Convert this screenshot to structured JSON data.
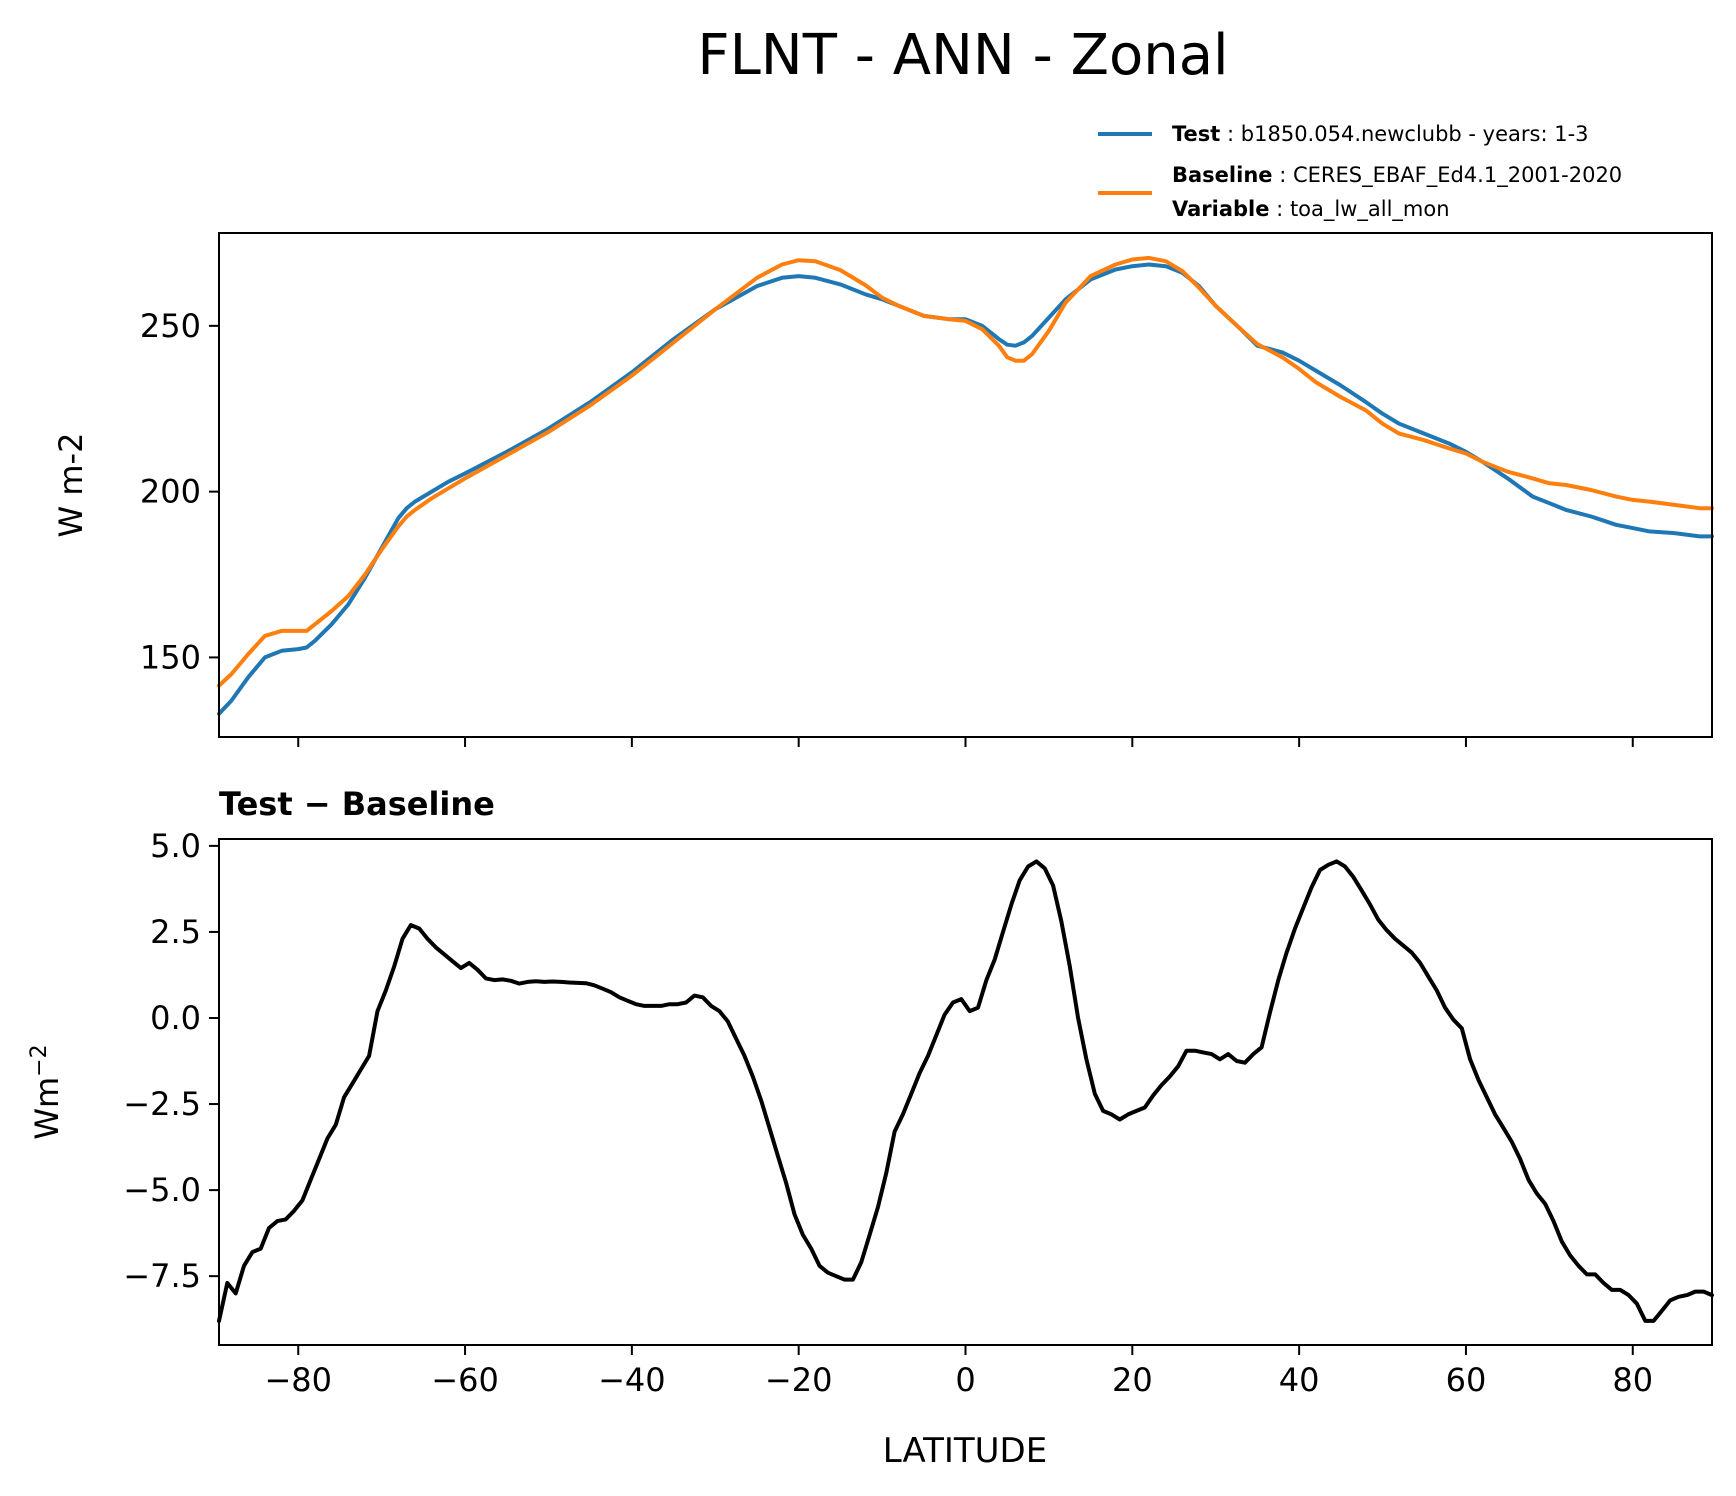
{
  "figure": {
    "title": "FLNT - ANN - Zonal",
    "legend": {
      "test_key": "Test",
      "test_value": "b1850.054.newclubb - years: 1-3",
      "baseline_key": "Baseline",
      "baseline_value": "CERES_EBAF_Ed4.1_2001-2020",
      "variable_key": "Variable",
      "variable_value": "toa_lw_all_mon"
    },
    "colors": {
      "test": "#1f77b4",
      "baseline": "#ff7f0e",
      "diff": "#000000"
    }
  },
  "chart_data": [
    {
      "type": "line",
      "title": "",
      "xlabel": "",
      "ylabel": "W m-2",
      "xlim": [
        -89.5,
        89.5
      ],
      "ylim": [
        126,
        278
      ],
      "xticks": [
        -80,
        -60,
        -40,
        -20,
        0,
        20,
        40,
        60,
        80
      ],
      "yticks": [
        150,
        200,
        250
      ],
      "ytick_labels": [
        "150",
        "200",
        "250"
      ],
      "legend_position": "top-right (above axes)",
      "series": [
        {
          "name": "Test",
          "x": [
            -89.5,
            -88,
            -86,
            -84,
            -82,
            -80,
            -79,
            -78,
            -76,
            -74,
            -72,
            -70,
            -68,
            -67,
            -66,
            -64,
            -62,
            -60,
            -55,
            -50,
            -45,
            -40,
            -35,
            -30,
            -25,
            -22,
            -20,
            -18,
            -15,
            -12,
            -10,
            -8,
            -5,
            -2,
            0,
            2,
            4,
            5,
            6,
            7,
            8,
            10,
            12,
            15,
            18,
            20,
            22,
            24,
            26,
            28,
            30,
            33,
            35,
            38,
            40,
            42,
            45,
            48,
            50,
            52,
            55,
            58,
            60,
            62,
            65,
            68,
            70,
            72,
            75,
            78,
            80,
            82,
            85,
            88,
            89.5
          ],
          "y": [
            133,
            137,
            144,
            150,
            152,
            152.5,
            153,
            155,
            160,
            166,
            174,
            183,
            192,
            195,
            197,
            200,
            203,
            205.5,
            212,
            219,
            227,
            236,
            246,
            255,
            262,
            264.5,
            265,
            264.5,
            262.5,
            259.5,
            258,
            256,
            253,
            252,
            252,
            250,
            246,
            244.3,
            244,
            245,
            247,
            252.5,
            258,
            264,
            267,
            268,
            268.5,
            268,
            266,
            262,
            256,
            249,
            244,
            242,
            239.5,
            236.5,
            232,
            227,
            223.5,
            220.5,
            217.5,
            214.5,
            212,
            209,
            204,
            198.5,
            196.5,
            194.5,
            192.5,
            190,
            189,
            188,
            187.5,
            186.5,
            186.5
          ]
        },
        {
          "name": "Baseline",
          "x": [
            -89.5,
            -88,
            -86,
            -84,
            -82,
            -80,
            -79,
            -78,
            -76,
            -74,
            -72,
            -70,
            -68,
            -67,
            -66,
            -64,
            -62,
            -60,
            -55,
            -50,
            -45,
            -40,
            -35,
            -30,
            -25,
            -22,
            -20,
            -18,
            -15,
            -12,
            -10,
            -8,
            -5,
            -2,
            0,
            2,
            4,
            5,
            6,
            7,
            8,
            10,
            12,
            15,
            18,
            20,
            22,
            24,
            26,
            28,
            30,
            33,
            35,
            38,
            40,
            42,
            45,
            48,
            50,
            52,
            55,
            58,
            60,
            62,
            65,
            68,
            70,
            72,
            75,
            78,
            80,
            82,
            85,
            88,
            89.5
          ],
          "y": [
            141.5,
            145,
            151,
            156.5,
            158,
            158,
            158,
            160,
            164,
            168.5,
            175,
            182.5,
            189.5,
            192.5,
            194.5,
            198,
            201,
            204,
            211,
            218,
            226,
            235,
            245,
            255,
            264.5,
            268.5,
            269.8,
            269.5,
            266.8,
            262.3,
            258.5,
            256,
            253,
            252,
            251.5,
            249,
            244,
            240.5,
            239.5,
            239.5,
            241.5,
            248.5,
            257,
            265,
            268.5,
            270,
            270.5,
            269.5,
            266.5,
            261.5,
            256,
            249,
            244.5,
            240.5,
            237,
            233,
            228.5,
            224.5,
            220.5,
            217.5,
            215.5,
            213,
            211.5,
            209,
            206,
            204,
            202.5,
            202,
            200.5,
            198.5,
            197.5,
            197,
            196,
            195,
            195
          ]
        }
      ]
    },
    {
      "type": "line",
      "title": "Test − Baseline",
      "xlabel": "LATITUDE",
      "ylabel": "Wm⁻²",
      "xlim": [
        -89.5,
        89.5
      ],
      "ylim": [
        -9.5,
        5.2
      ],
      "xticks": [
        -80,
        -60,
        -40,
        -20,
        0,
        20,
        40,
        60,
        80
      ],
      "xtick_labels": [
        "−80",
        "−60",
        "−40",
        "−20",
        "0",
        "20",
        "40",
        "60",
        "80"
      ],
      "yticks": [
        -7.5,
        -5.0,
        -2.5,
        0.0,
        2.5,
        5.0
      ],
      "ytick_labels": [
        "−7.5",
        "−5.0",
        "−2.5",
        "0.0",
        "2.5",
        "5.0"
      ],
      "series": [
        {
          "name": "Test − Baseline",
          "x": [
            -89.5,
            -88.5,
            -87.5,
            -86.5,
            -85.5,
            -84.5,
            -83.5,
            -82.5,
            -81.5,
            -80.5,
            -79.5,
            -78.5,
            -77.5,
            -76.5,
            -75.5,
            -74.5,
            -73.5,
            -72.5,
            -71.5,
            -70.5,
            -69.5,
            -68.5,
            -67.5,
            -66.5,
            -65.5,
            -64.5,
            -63.5,
            -62.5,
            -61.5,
            -60.5,
            -59.5,
            -58.5,
            -57.5,
            -56.5,
            -55.5,
            -54.5,
            -53.5,
            -52.5,
            -51.5,
            -50.5,
            -49.5,
            -48.5,
            -47.5,
            -46.5,
            -45.5,
            -44.5,
            -43.5,
            -42.5,
            -41.5,
            -40.5,
            -39.5,
            -38.5,
            -37.5,
            -36.5,
            -35.5,
            -34.5,
            -33.5,
            -32.5,
            -31.5,
            -30.5,
            -29.5,
            -28.5,
            -27.5,
            -26.5,
            -25.5,
            -24.5,
            -23.5,
            -22.5,
            -21.5,
            -20.5,
            -19.5,
            -18.5,
            -17.5,
            -16.5,
            -15.5,
            -14.5,
            -13.5,
            -12.5,
            -11.5,
            -10.5,
            -9.5,
            -8.5,
            -7.5,
            -6.5,
            -5.5,
            -4.5,
            -3.5,
            -2.5,
            -1.5,
            -0.5,
            0.5,
            1.5,
            2.5,
            3.5,
            4.5,
            5.5,
            6.5,
            7.5,
            8.5,
            9.5,
            10.5,
            11.5,
            12.5,
            13.5,
            14.5,
            15.5,
            16.5,
            17.5,
            18.5,
            19.5,
            20.5,
            21.5,
            22.5,
            23.5,
            24.5,
            25.5,
            26.5,
            27.5,
            28.5,
            29.5,
            30.5,
            31.5,
            32.5,
            33.5,
            34.5,
            35.5,
            36.5,
            37.5,
            38.5,
            39.5,
            40.5,
            41.5,
            42.5,
            43.5,
            44.5,
            45.5,
            46.5,
            47.5,
            48.5,
            49.5,
            50.5,
            51.5,
            52.5,
            53.5,
            54.5,
            55.5,
            56.5,
            57.5,
            58.5,
            59.5,
            60.5,
            61.5,
            62.5,
            63.5,
            64.5,
            65.5,
            66.5,
            67.5,
            68.5,
            69.5,
            70.5,
            71.5,
            72.5,
            73.5,
            74.5,
            75.5,
            76.5,
            77.5,
            78.5,
            79.5,
            80.5,
            81.5,
            82.5,
            83.5,
            84.5,
            85.5,
            86.5,
            87.5,
            88.5,
            89.5
          ],
          "y": [
            -8.8,
            -7.7,
            -8,
            -7.2,
            -6.8,
            -6.7,
            -6.1,
            -5.9,
            -5.85,
            -5.6,
            -5.3,
            -4.7,
            -4.1,
            -3.5,
            -3.1,
            -2.3,
            -1.9,
            -1.5,
            -1.1,
            0.2,
            0.8,
            1.5,
            2.3,
            2.7,
            2.6,
            2.3,
            2.05,
            1.85,
            1.65,
            1.45,
            1.6,
            1.4,
            1.15,
            1.1,
            1.12,
            1.08,
            1,
            1.05,
            1.07,
            1.05,
            1.06,
            1.05,
            1.03,
            1.02,
            1.01,
            0.95,
            0.85,
            0.75,
            0.6,
            0.5,
            0.4,
            0.35,
            0.35,
            0.35,
            0.4,
            0.4,
            0.45,
            0.65,
            0.6,
            0.35,
            0.2,
            -0.1,
            -0.6,
            -1.1,
            -1.7,
            -2.4,
            -3.2,
            -4,
            -4.8,
            -5.7,
            -6.3,
            -6.7,
            -7.2,
            -7.4,
            -7.5,
            -7.6,
            -7.6,
            -7.1,
            -6.3,
            -5.5,
            -4.5,
            -3.3,
            -2.8,
            -2.2,
            -1.6,
            -1.1,
            -0.5,
            0.1,
            0.45,
            0.55,
            0.2,
            0.3,
            1.1,
            1.7,
            2.5,
            3.3,
            4,
            4.4,
            4.55,
            4.35,
            3.85,
            2.8,
            1.5,
            0,
            -1.2,
            -2.2,
            -2.7,
            -2.8,
            -2.95,
            -2.8,
            -2.7,
            -2.6,
            -2.25,
            -1.95,
            -1.7,
            -1.4,
            -0.95,
            -0.95,
            -1,
            -1.05,
            -1.2,
            -1.05,
            -1.25,
            -1.3,
            -1.05,
            -0.85,
            0.15,
            1.1,
            1.9,
            2.6,
            3.2,
            3.8,
            4.3,
            4.45,
            4.55,
            4.4,
            4.1,
            3.7,
            3.3,
            2.85,
            2.55,
            2.3,
            2.1,
            1.9,
            1.6,
            1.2,
            0.8,
            0.3,
            -0.05,
            -0.3,
            -1.2,
            -1.8,
            -2.3,
            -2.8,
            -3.2,
            -3.6,
            -4.1,
            -4.7,
            -5.1,
            -5.4,
            -5.9,
            -6.5,
            -6.9,
            -7.2,
            -7.45,
            -7.45,
            -7.7,
            -7.9,
            -7.9,
            -8.05,
            -8.3,
            -8.8,
            -8.8,
            -8.5,
            -8.2,
            -8.1,
            -8.05,
            -7.95,
            -7.95,
            -8.05
          ]
        }
      ]
    }
  ]
}
